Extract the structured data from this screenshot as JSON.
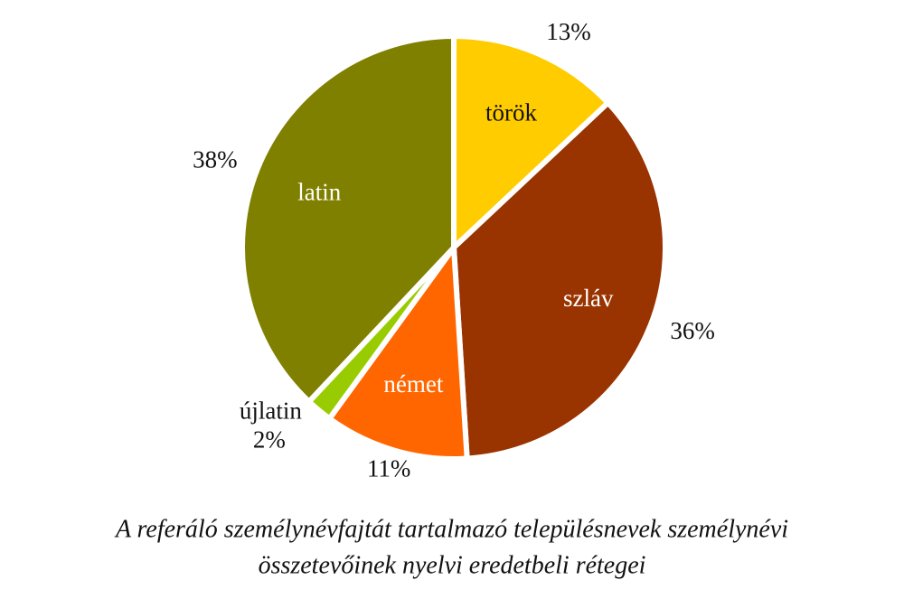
{
  "chart_data": {
    "type": "pie",
    "title": [
      "A referáló személynévfajtát tartalmazó településnevek személynévi",
      "összetevőinek nyelvi eredetbeli rétegei"
    ],
    "categories": [
      "török",
      "szláv",
      "német",
      "újlatin",
      "latin"
    ],
    "values": [
      13,
      36,
      11,
      2,
      38
    ],
    "value_labels": [
      "13%",
      "36%",
      "11%",
      "2%",
      "38%"
    ],
    "colors": [
      "#ffcc00",
      "#993300",
      "#ff6600",
      "#99cc00",
      "#808000"
    ]
  }
}
